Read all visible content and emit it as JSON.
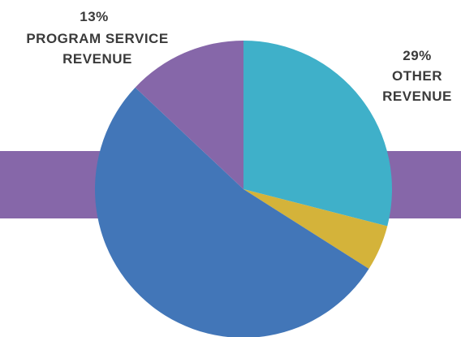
{
  "colors": {
    "background": "#ffffff",
    "band": "#8667a9",
    "label_text": "#3a3a3a"
  },
  "chart_data": {
    "type": "pie",
    "start_angle": "12 o'clock",
    "direction": "clockwise",
    "slices": [
      {
        "value": 29,
        "color": "#3fb0c9",
        "percent_label": "29%",
        "label_lines": [
          "OTHER",
          "REVENUE"
        ],
        "label_side": "right"
      },
      {
        "value": 5,
        "color": "#d4b33a"
      },
      {
        "value": 53,
        "color": "#4276b8"
      },
      {
        "value": 13,
        "color": "#8667a9",
        "percent_label": "13%",
        "label_lines": [
          "PROGRAM SERVICE",
          "REVENUE"
        ],
        "label_side": "top-left"
      }
    ]
  }
}
